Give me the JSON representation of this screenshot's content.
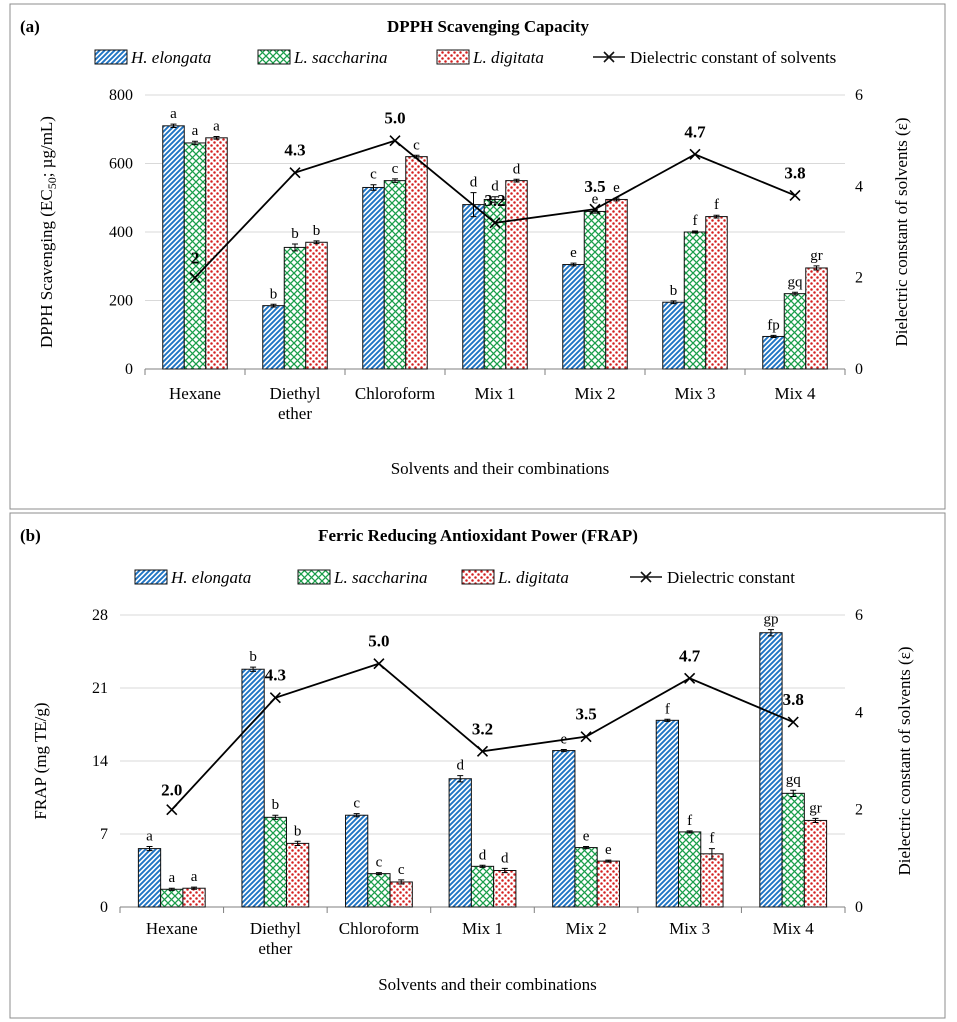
{
  "chart_data": [
    {
      "panel_label": "(a)",
      "type": "bar",
      "title": "DPPH Scavenging Capacity",
      "xlabel": "Solvents and their combinations",
      "ylabel_parts": [
        "DPPH Scavenging (EC",
        "50",
        "; µg/mL)"
      ],
      "y2label": "Dielectric constant of solvents (ε)",
      "categories": [
        [
          "Hexane"
        ],
        [
          "Diethyl",
          "ether"
        ],
        [
          "Chloroform"
        ],
        [
          "Mix 1"
        ],
        [
          "Mix 2"
        ],
        [
          "Mix 3"
        ],
        [
          "Mix 4"
        ]
      ],
      "ylim": [
        0,
        800
      ],
      "yticks": [
        "0",
        "200",
        "400",
        "600",
        "800"
      ],
      "y2lim": [
        0,
        6
      ],
      "y2ticks": [
        "0",
        "2",
        "4",
        "6"
      ],
      "series": [
        {
          "name": "H. elongata",
          "pattern": "diag",
          "values": [
            710,
            185,
            530,
            480,
            305,
            195,
            95
          ],
          "errors": [
            5,
            4,
            8,
            35,
            4,
            4,
            3
          ],
          "letters": [
            "a",
            "b",
            "c",
            "d",
            "e",
            "b",
            "fp"
          ]
        },
        {
          "name": "L. saccharina",
          "pattern": "cross",
          "values": [
            660,
            355,
            550,
            495,
            460,
            400,
            220
          ],
          "errors": [
            5,
            10,
            5,
            8,
            5,
            3,
            4
          ],
          "letters": [
            "a",
            "b",
            "c",
            "d",
            "e",
            "f",
            "gq"
          ]
        },
        {
          "name": "L. digitata",
          "pattern": "dots",
          "values": [
            675,
            370,
            620,
            550,
            495,
            445,
            295
          ],
          "errors": [
            4,
            4,
            4,
            4,
            4,
            4,
            6
          ],
          "letters": [
            "a",
            "b",
            "c",
            "d",
            "e",
            "f",
            "gr"
          ]
        }
      ],
      "line": {
        "name": "Dielectric constant of solvents",
        "values": [
          2,
          4.3,
          5.0,
          3.2,
          3.5,
          4.7,
          3.8
        ],
        "labels": [
          "2",
          "4.3",
          "5.0",
          "3.2",
          "3.5",
          "4.7",
          "3.8"
        ]
      }
    },
    {
      "panel_label": "(b)",
      "type": "bar",
      "title": "Ferric Reducing Antioxidant Power (FRAP)",
      "xlabel": "Solvents and their combinations",
      "ylabel_parts": [
        "FRAP (mg TE/g)"
      ],
      "y2label": "Dielectric constant of solvents (ε)",
      "categories": [
        [
          "Hexane"
        ],
        [
          "Diethyl",
          "ether"
        ],
        [
          "Chloroform"
        ],
        [
          "Mix 1"
        ],
        [
          "Mix 2"
        ],
        [
          "Mix 3"
        ],
        [
          "Mix 4"
        ]
      ],
      "ylim": [
        0,
        28
      ],
      "yticks": [
        "0",
        "7",
        "14",
        "21",
        "28"
      ],
      "y2lim": [
        0,
        6
      ],
      "y2ticks": [
        "0",
        "2",
        "4",
        "6"
      ],
      "series": [
        {
          "name": "H. elongata",
          "pattern": "diag",
          "values": [
            5.6,
            22.8,
            8.8,
            12.3,
            15.0,
            17.9,
            26.3
          ],
          "errors": [
            0.2,
            0.2,
            0.15,
            0.3,
            0.1,
            0.1,
            0.3
          ],
          "letters": [
            "a",
            "b",
            "c",
            "d",
            "e",
            "f",
            "gp"
          ]
        },
        {
          "name": "L. saccharina",
          "pattern": "cross",
          "values": [
            1.7,
            8.6,
            3.2,
            3.9,
            5.7,
            7.2,
            10.9
          ],
          "errors": [
            0.1,
            0.2,
            0.1,
            0.1,
            0.1,
            0.1,
            0.3
          ],
          "letters": [
            "a",
            "b",
            "c",
            "d",
            "e",
            "f",
            "gq"
          ]
        },
        {
          "name": "L. digitata",
          "pattern": "dots",
          "values": [
            1.8,
            6.1,
            2.4,
            3.5,
            4.4,
            5.1,
            8.3
          ],
          "errors": [
            0.1,
            0.2,
            0.2,
            0.2,
            0.1,
            0.5,
            0.2
          ],
          "letters": [
            "a",
            "b",
            "c",
            "d",
            "e",
            "f",
            "gr"
          ]
        }
      ],
      "line": {
        "name": "Dielectric constant",
        "values": [
          2.0,
          4.3,
          5.0,
          3.2,
          3.5,
          4.7,
          3.8
        ],
        "labels": [
          "2.0",
          "4.3",
          "5.0",
          "3.2",
          "3.5",
          "4.7",
          "3.8"
        ]
      }
    }
  ]
}
